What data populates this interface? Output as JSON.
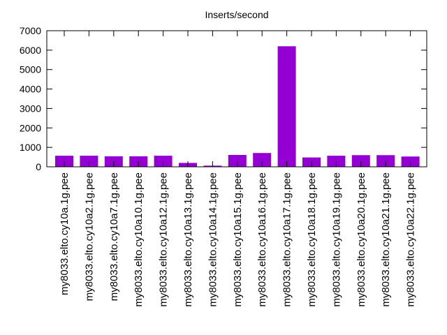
{
  "chart_data": {
    "type": "bar",
    "title": "Inserts/second",
    "xlabel": "",
    "ylabel": "",
    "ylim": [
      0,
      7000
    ],
    "yticks": [
      0,
      1000,
      2000,
      3000,
      4000,
      5000,
      6000,
      7000
    ],
    "grid": false,
    "bar_color": "#9400d3",
    "categories": [
      "my8033.elto.cy10a.1g.pee",
      "my8033.elto.cy10a2.1g.pee",
      "my8033.elto.cy10a7.1g.pee",
      "my8033.elto.cy10a10.1g.pee",
      "my8033.elto.cy10a12.1g.pee",
      "my8033.elto.cy10a13.1g.pee",
      "my8033.elto.cy10a14.1g.pee",
      "my8033.elto.cy10a15.1g.pee",
      "my8033.elto.cy10a16.1g.pee",
      "my8033.elto.cy10a17.1g.pee",
      "my8033.elto.cy10a18.1g.pee",
      "my8033.elto.cy10a19.1g.pee",
      "my8033.elto.cy10a20.1g.pee",
      "my8033.elto.cy10a21.1g.pee",
      "my8033.elto.cy10a22.1g.pee"
    ],
    "values": [
      570,
      570,
      540,
      540,
      570,
      200,
      60,
      610,
      710,
      6200,
      480,
      570,
      600,
      600,
      530
    ]
  }
}
